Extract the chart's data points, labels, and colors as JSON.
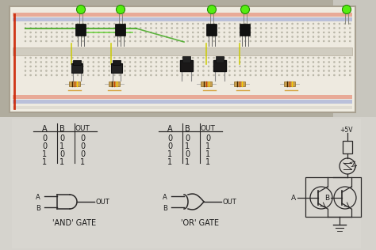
{
  "bg_top": "#c8c4b8",
  "bg_bottom": "#d0cec8",
  "bb_bg": "#f2efe6",
  "bb_border": "#b8b0a0",
  "hole_color": "#c8c4b8",
  "rail_red": "#cc3322",
  "rail_blue": "#2244cc",
  "led_green": "#55ee11",
  "wire_green": "#44aa22",
  "wire_yellow": "#cccc00",
  "wire_red": "#cc2200",
  "trans_body": "#111111",
  "btn_dark": "#1a1818",
  "resistor_tan": "#c8a050",
  "line_color": "#2a2828",
  "paper_bg": "#d8d6d0",
  "and_gate_label": "'AND' GATE",
  "or_gate_label": "'OR' GATE",
  "and_truth": [
    [
      "0",
      "0",
      "0"
    ],
    [
      "0",
      "1",
      "0"
    ],
    [
      "1",
      "0",
      "0"
    ],
    [
      "1",
      "1",
      "1"
    ]
  ],
  "or_truth": [
    [
      "0",
      "0",
      "0"
    ],
    [
      "0",
      "1",
      "1"
    ],
    [
      "1",
      "0",
      "1"
    ],
    [
      "1",
      "1",
      "1"
    ]
  ]
}
